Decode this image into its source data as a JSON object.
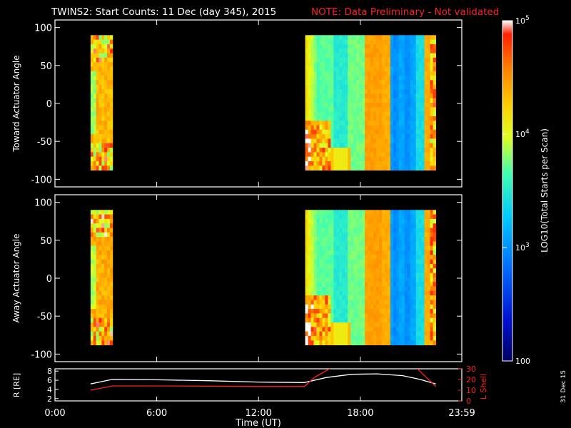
{
  "header": {
    "title": "TWINS2: Start Counts: 11 Dec (day 345), 2015",
    "note": "NOTE: Data Preliminary - Not validated",
    "title_color": "#ffffff",
    "note_color": "#ff2020"
  },
  "date_stamp": "31 Dec 15",
  "colorbar": {
    "label": "LOG10(Total Starts per Scan)",
    "tick_labels": [
      "10^5",
      "10^4",
      "10^3",
      "100"
    ],
    "tick_values": [
      100000,
      10000,
      1000,
      100
    ],
    "scale": "log",
    "range": [
      100,
      100000
    ]
  },
  "chart_data": [
    {
      "type": "heatmap",
      "name": "toward",
      "ylabel": "Toward Actuator Angle",
      "yticks": [
        "100",
        "50",
        "0",
        "-50",
        "-100"
      ],
      "ylim": [
        -110,
        110
      ],
      "x_unit": "hours UT",
      "xlim": [
        0,
        23.983
      ],
      "data_y_range": [
        -88,
        90
      ],
      "log_color_scale": [
        2,
        5
      ],
      "intervals": [
        {
          "start": 2.1,
          "end": 3.4,
          "typical_log_counts": 4.4,
          "note": "orange/red band, striped near bottom"
        },
        {
          "start": 14.75,
          "end": 22.45,
          "typical_log_counts": 3.5,
          "note": "yellow-green to cyan, red strips near 18.6-19 h"
        }
      ]
    },
    {
      "type": "heatmap",
      "name": "away",
      "ylabel": "Away Actuator Angle",
      "yticks": [
        "100",
        "50",
        "0",
        "-50",
        "-100"
      ],
      "ylim": [
        -110,
        110
      ],
      "x_unit": "hours UT",
      "xlim": [
        0,
        23.983
      ],
      "data_y_range": [
        -88,
        90
      ],
      "log_color_scale": [
        2,
        5
      ],
      "intervals": [
        {
          "start": 2.1,
          "end": 3.4,
          "typical_log_counts": 4.4,
          "note": "orange/red band"
        },
        {
          "start": 14.75,
          "end": 22.45,
          "typical_log_counts": 3.6,
          "note": "yellow to cyan, blue near 20-21 h"
        }
      ]
    },
    {
      "type": "line",
      "name": "ephemeris",
      "ylabel_left": "R [RE]",
      "ylabel_right": "L Shell",
      "yticks_left": [
        "8",
        "6",
        "4",
        "2"
      ],
      "yticks_right": [
        "30",
        "20",
        "10",
        "0"
      ],
      "ylim_left": [
        1.5,
        8.5
      ],
      "ylim_right": [
        0,
        30
      ],
      "xticks": [
        "0:00",
        "6:00",
        "12:00",
        "18:00",
        "23:59"
      ],
      "xtick_values": [
        0,
        6,
        12,
        18,
        23.983
      ],
      "xlabel": "Time (UT)",
      "series": [
        {
          "label": "R [RE]",
          "axis": "left",
          "color": "#ffffff",
          "x": [
            2.1,
            3.4,
            6,
            9,
            12,
            14.7,
            16,
            17.5,
            19,
            20.5,
            21.5,
            22.45
          ],
          "y": [
            5.2,
            6.2,
            6.1,
            5.9,
            5.6,
            5.5,
            6.6,
            7.3,
            7.4,
            7.0,
            6.2,
            5.2
          ]
        },
        {
          "label": "L Shell",
          "axis": "right",
          "color": "#ff2020",
          "segments": [
            {
              "x": [
                2.1,
                3.4,
                6,
                9,
                12,
                14.7,
                15.3
              ],
              "y": [
                10,
                14,
                14,
                13.8,
                13.5,
                13.5,
                22
              ]
            },
            {
              "x": [
                15.3,
                16.3
              ],
              "y": [
                22,
                31
              ]
            },
            {
              "x": [
                21.3,
                22.45
              ],
              "y": [
                31,
                13.5
              ]
            }
          ]
        }
      ]
    }
  ]
}
